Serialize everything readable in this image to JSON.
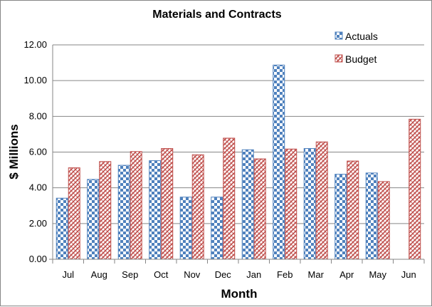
{
  "chart_data": {
    "type": "bar",
    "title": "Materials and Contracts",
    "xlabel": "Month",
    "ylabel": "$ Millions",
    "categories": [
      "Jul",
      "Aug",
      "Sep",
      "Oct",
      "Nov",
      "Dec",
      "Jan",
      "Feb",
      "Mar",
      "Apr",
      "May",
      "Jun"
    ],
    "series": [
      {
        "name": "Actuals",
        "values": [
          3.42,
          4.47,
          5.26,
          5.52,
          3.48,
          3.48,
          6.13,
          10.87,
          6.2,
          4.76,
          4.83,
          null
        ]
      },
      {
        "name": "Budget",
        "values": [
          5.12,
          5.47,
          6.03,
          6.2,
          5.85,
          6.78,
          5.62,
          6.17,
          6.57,
          5.5,
          4.35,
          7.84
        ]
      }
    ],
    "ylim": [
      0,
      12
    ],
    "yticks": [
      "0.00",
      "2.00",
      "4.00",
      "6.00",
      "8.00",
      "10.00",
      "12.00"
    ],
    "grid": true,
    "legend": "top-right",
    "colors": {
      "actuals": "#4f81bd",
      "budget": "#c0504d",
      "gridline": "#868686"
    }
  }
}
